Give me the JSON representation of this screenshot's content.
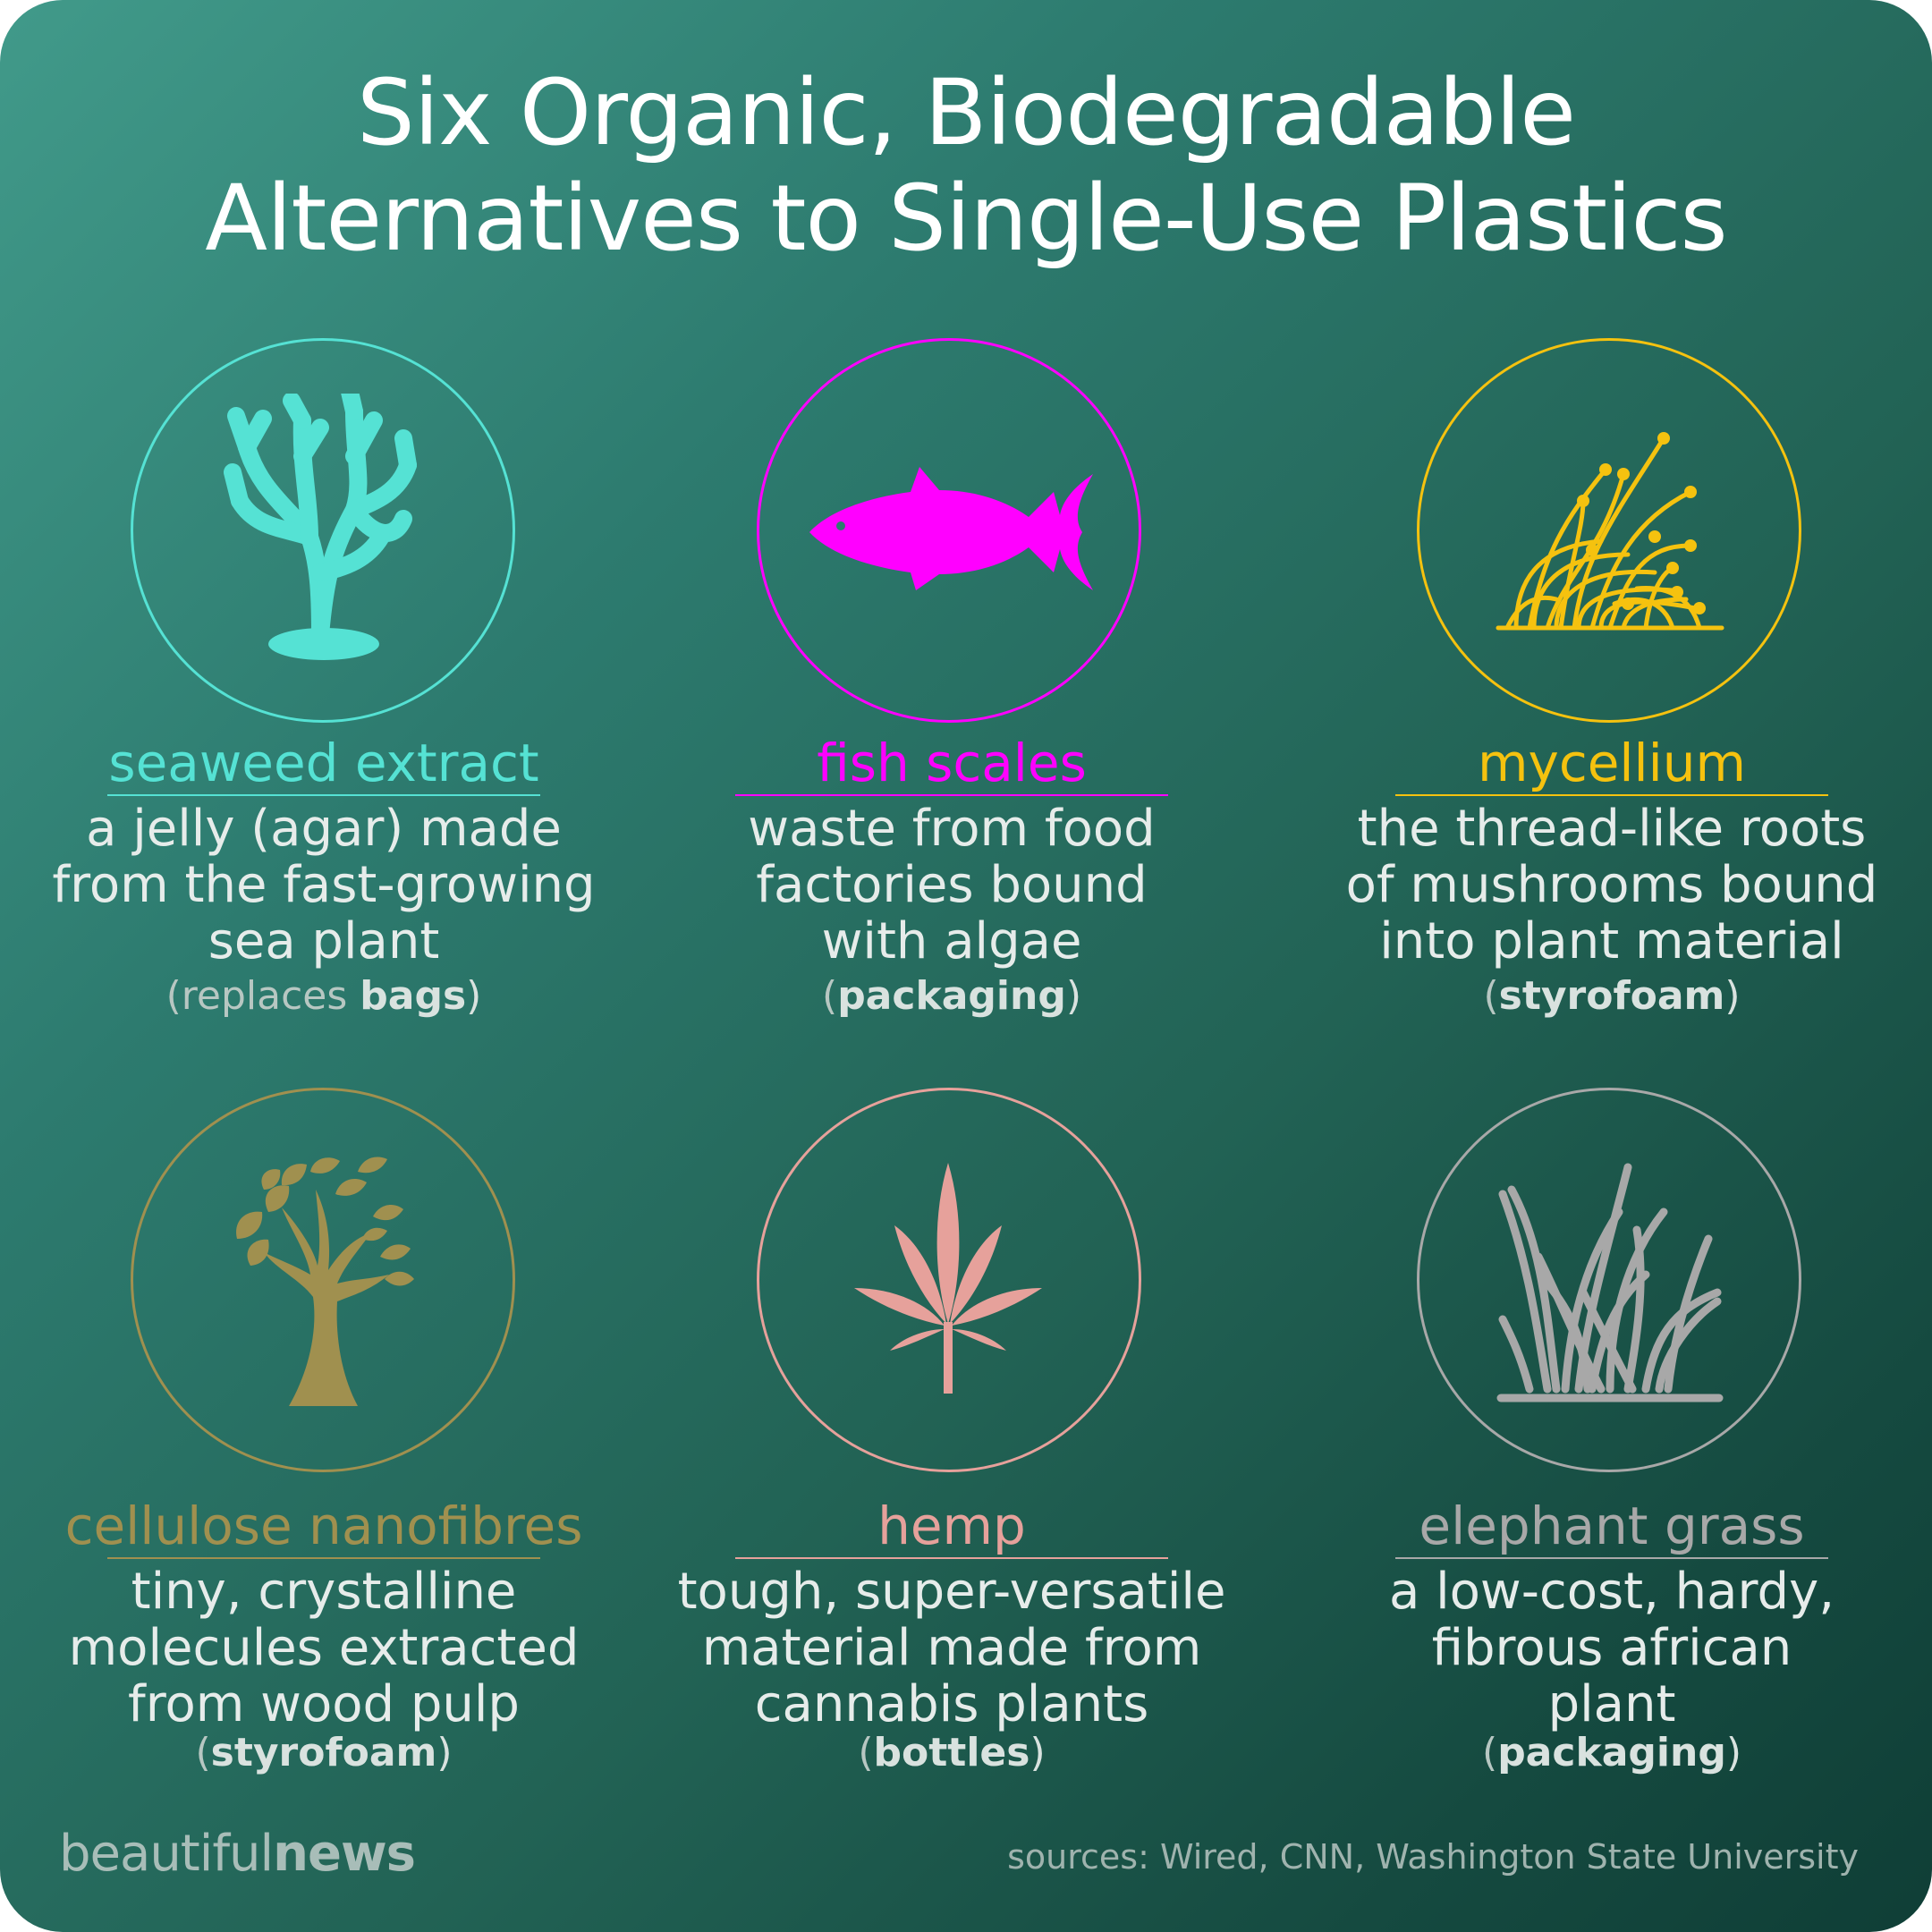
{
  "title": {
    "line1": "Six Organic, Biodegradable",
    "line2": "Alternatives to Single-Use Plastics"
  },
  "items": [
    {
      "label": "seaweed extract",
      "color": "#55e2d4",
      "icon": "seaweed-icon",
      "desc": [
        "a jelly (agar) made",
        "from the fast-growing",
        "sea plant"
      ],
      "use_prefix": "(replaces ",
      "use": "bags",
      "use_suffix": ")"
    },
    {
      "label": "fish scales",
      "color": "#ff00ff",
      "icon": "fish-icon",
      "desc": [
        "waste from food",
        "factories bound",
        "with algae"
      ],
      "use_prefix": "(",
      "use": "packaging",
      "use_suffix": ")"
    },
    {
      "label": "mycellium",
      "color": "#f5c20f",
      "icon": "mycelium-icon",
      "desc": [
        "the thread-like roots",
        "of mushrooms bound",
        "into plant material"
      ],
      "use_prefix": "(",
      "use": "styrofoam",
      "use_suffix": ")"
    },
    {
      "label": "cellulose nanofibres",
      "color": "#a0904f",
      "icon": "tree-icon",
      "desc": [
        "tiny, crystalline",
        "molecules extracted",
        "from wood pulp"
      ],
      "use_prefix": "(",
      "use": "styrofoam",
      "use_suffix": ")"
    },
    {
      "label": "hemp",
      "color": "#e6a19b",
      "icon": "cannabis-leaf-icon",
      "desc": [
        "tough, super-versatile",
        "material made from",
        "cannabis plants"
      ],
      "use_prefix": "(",
      "use": "bottles",
      "use_suffix": ")"
    },
    {
      "label": "elephant grass",
      "color": "#a8a8a8",
      "icon": "grass-icon",
      "desc": [
        "a low-cost, hardy,",
        "fibrous african",
        "plant"
      ],
      "use_prefix": "(",
      "use": "packaging",
      "use_suffix": ")"
    }
  ],
  "footer": {
    "logo_light": "beautiful",
    "logo_bold": "news",
    "sources": "sources: Wired, CNN, Washington State University"
  }
}
